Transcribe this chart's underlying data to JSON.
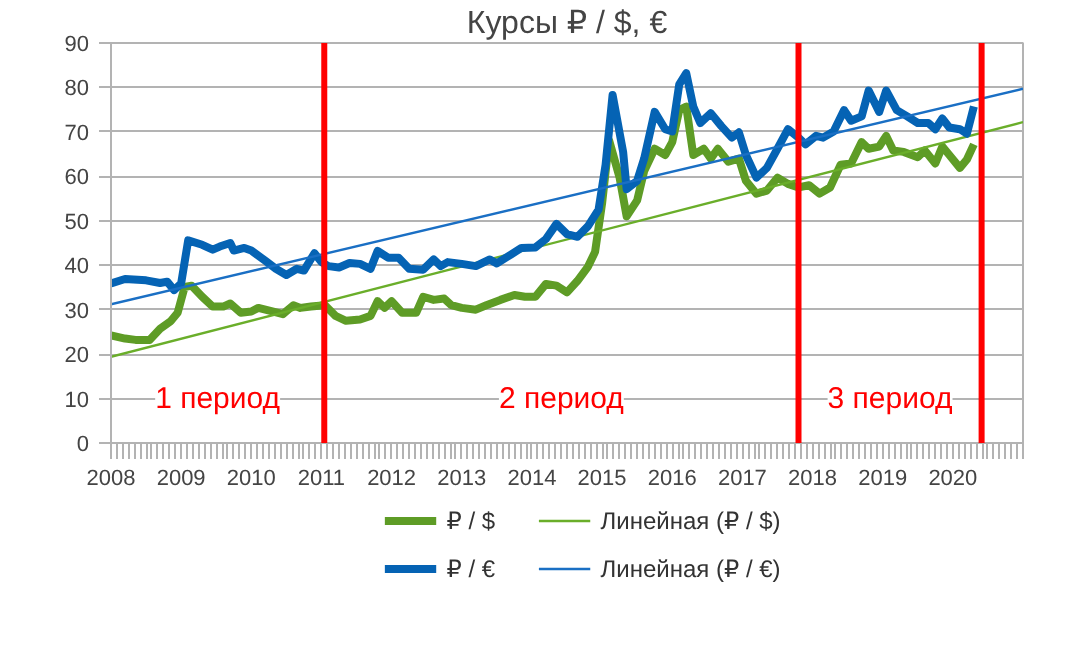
{
  "chart_data": {
    "type": "line",
    "title": "Курсы ₽ / $, €",
    "xlim": [
      2008,
      2021
    ],
    "xticks": [
      2008,
      2009,
      2010,
      2011,
      2012,
      2013,
      2014,
      2015,
      2016,
      2017,
      2018,
      2019,
      2020
    ],
    "ylim": [
      0,
      90
    ],
    "yticks": [
      0,
      10,
      20,
      30,
      40,
      50,
      60,
      70,
      80,
      90
    ],
    "grid": "y",
    "legend": "bottom",
    "x": [
      2008.0,
      2008.2,
      2008.35,
      2008.55,
      2008.7,
      2008.85,
      2008.95,
      2009.05,
      2009.15,
      2009.3,
      2009.45,
      2009.6,
      2009.7,
      2009.85,
      2010.0,
      2010.1,
      2010.3,
      2010.45,
      2010.6,
      2010.7,
      2010.85,
      2011.05,
      2011.2,
      2011.35,
      2011.55,
      2011.7,
      2011.8,
      2011.9,
      2012.0,
      2012.15,
      2012.35,
      2012.45,
      2012.6,
      2012.75,
      2012.85,
      2013.0,
      2013.2,
      2013.35,
      2013.55,
      2013.75,
      2013.9,
      2014.05,
      2014.2,
      2014.35,
      2014.5,
      2014.65,
      2014.8,
      2014.9,
      2015.0,
      2015.1,
      2015.25,
      2015.35,
      2015.5,
      2015.6,
      2015.75,
      2015.9,
      2016.0,
      2016.1,
      2016.2,
      2016.3,
      2016.45,
      2016.55,
      2016.65,
      2016.8,
      2016.95,
      2017.05,
      2017.2,
      2017.35,
      2017.5,
      2017.65,
      2017.8,
      2017.95,
      2018.1,
      2018.25,
      2018.4,
      2018.55,
      2018.7,
      2018.8,
      2018.95,
      2019.05,
      2019.15,
      2019.3,
      2019.5,
      2019.6,
      2019.75,
      2019.85,
      2019.95,
      2020.1,
      2020.2,
      2020.3
    ],
    "series": [
      {
        "name": "₽ / $",
        "color": "#5e9c26",
        "values": [
          24.2,
          23.5,
          23.2,
          23.2,
          25.7,
          27.4,
          29.3,
          35.1,
          35.4,
          32.9,
          30.7,
          30.7,
          31.4,
          29.3,
          29.6,
          30.4,
          29.6,
          29.0,
          31.0,
          30.4,
          30.7,
          31.0,
          28.6,
          27.5,
          27.8,
          28.6,
          31.9,
          30.4,
          31.9,
          29.3,
          29.3,
          32.9,
          32.2,
          32.5,
          31.0,
          30.4,
          30.0,
          31.0,
          32.2,
          33.3,
          32.9,
          32.9,
          35.8,
          35.4,
          33.9,
          36.5,
          39.7,
          43.0,
          53.9,
          68.1,
          59.7,
          51.0,
          54.6,
          61.2,
          66.2,
          64.8,
          67.7,
          74.9,
          75.7,
          64.8,
          66.2,
          64.0,
          66.2,
          63.3,
          64.0,
          59.0,
          56.1,
          56.8,
          59.7,
          58.3,
          57.5,
          58.0,
          56.1,
          57.5,
          62.6,
          62.9,
          67.7,
          66.2,
          66.7,
          69.1,
          65.8,
          65.5,
          64.3,
          65.8,
          62.9,
          66.7,
          64.8,
          61.9,
          63.8,
          67.2
        ]
      },
      {
        "name": "Линейная (₽ / $)",
        "color": "#6aae2a",
        "x": [
          2008,
          2021
        ],
        "values": [
          19.4,
          72.2
        ]
      },
      {
        "name": "₽ / €",
        "color": "#0563b4",
        "x": [
          2008.0,
          2008.2,
          2008.5,
          2008.7,
          2008.8,
          2008.9,
          2009.0,
          2009.1,
          2009.3,
          2009.45,
          2009.55,
          2009.7,
          2009.75,
          2009.9,
          2010.0,
          2010.2,
          2010.35,
          2010.5,
          2010.65,
          2010.75,
          2010.9,
          2011.0,
          2011.1,
          2011.25,
          2011.4,
          2011.55,
          2011.7,
          2011.8,
          2011.95,
          2012.1,
          2012.25,
          2012.45,
          2012.6,
          2012.7,
          2012.8,
          2013.0,
          2013.2,
          2013.4,
          2013.5,
          2013.7,
          2013.85,
          2014.05,
          2014.2,
          2014.35,
          2014.5,
          2014.65,
          2014.8,
          2014.95,
          2015.05,
          2015.15,
          2015.3,
          2015.35,
          2015.5,
          2015.6,
          2015.75,
          2015.9,
          2016.0,
          2016.1,
          2016.2,
          2016.3,
          2016.4,
          2016.55,
          2016.7,
          2016.85,
          2016.95,
          2017.05,
          2017.2,
          2017.35,
          2017.5,
          2017.65,
          2017.8,
          2017.9,
          2018.05,
          2018.15,
          2018.3,
          2018.45,
          2018.55,
          2018.7,
          2018.8,
          2018.95,
          2019.05,
          2019.2,
          2019.35,
          2019.5,
          2019.65,
          2019.75,
          2019.85,
          2019.95,
          2020.1,
          2020.2,
          2020.3
        ],
        "values": [
          35.9,
          36.9,
          36.6,
          36.0,
          36.3,
          34.4,
          35.9,
          45.6,
          44.6,
          43.5,
          44.2,
          45.0,
          43.3,
          43.9,
          43.3,
          41.0,
          39.2,
          37.8,
          39.2,
          38.8,
          42.7,
          40.7,
          39.8,
          39.5,
          40.5,
          40.3,
          39.2,
          43.2,
          41.7,
          41.7,
          39.2,
          39.0,
          41.3,
          39.8,
          40.7,
          40.3,
          39.8,
          41.3,
          40.4,
          42.4,
          43.9,
          44.0,
          45.9,
          49.3,
          47.0,
          46.4,
          48.8,
          52.5,
          62.6,
          78.3,
          65.5,
          57.1,
          59.0,
          64.0,
          74.5,
          70.6,
          70.1,
          80.7,
          83.2,
          75.7,
          72.0,
          74.2,
          71.3,
          68.7,
          69.9,
          64.8,
          59.7,
          61.9,
          66.2,
          70.6,
          68.7,
          67.2,
          69.1,
          68.7,
          70.1,
          74.9,
          72.5,
          73.5,
          79.3,
          74.5,
          79.3,
          74.9,
          73.5,
          72.0,
          72.0,
          70.6,
          73.0,
          71.0,
          70.6,
          69.6,
          75.7
        ]
      },
      {
        "name": "Линейная (₽ / €)",
        "color": "#1a6fc4",
        "x": [
          2008,
          2021
        ],
        "values": [
          31.2,
          79.7
        ]
      }
    ],
    "ref_lines": [
      {
        "axis": "x",
        "value": 2011.04,
        "color": "#ff0000"
      },
      {
        "axis": "x",
        "value": 2017.8,
        "color": "#ff0000"
      },
      {
        "axis": "x",
        "value": 2020.41,
        "color": "#ff0000"
      }
    ],
    "annotations": [
      "1 период",
      "2 период",
      "3 период"
    ]
  }
}
